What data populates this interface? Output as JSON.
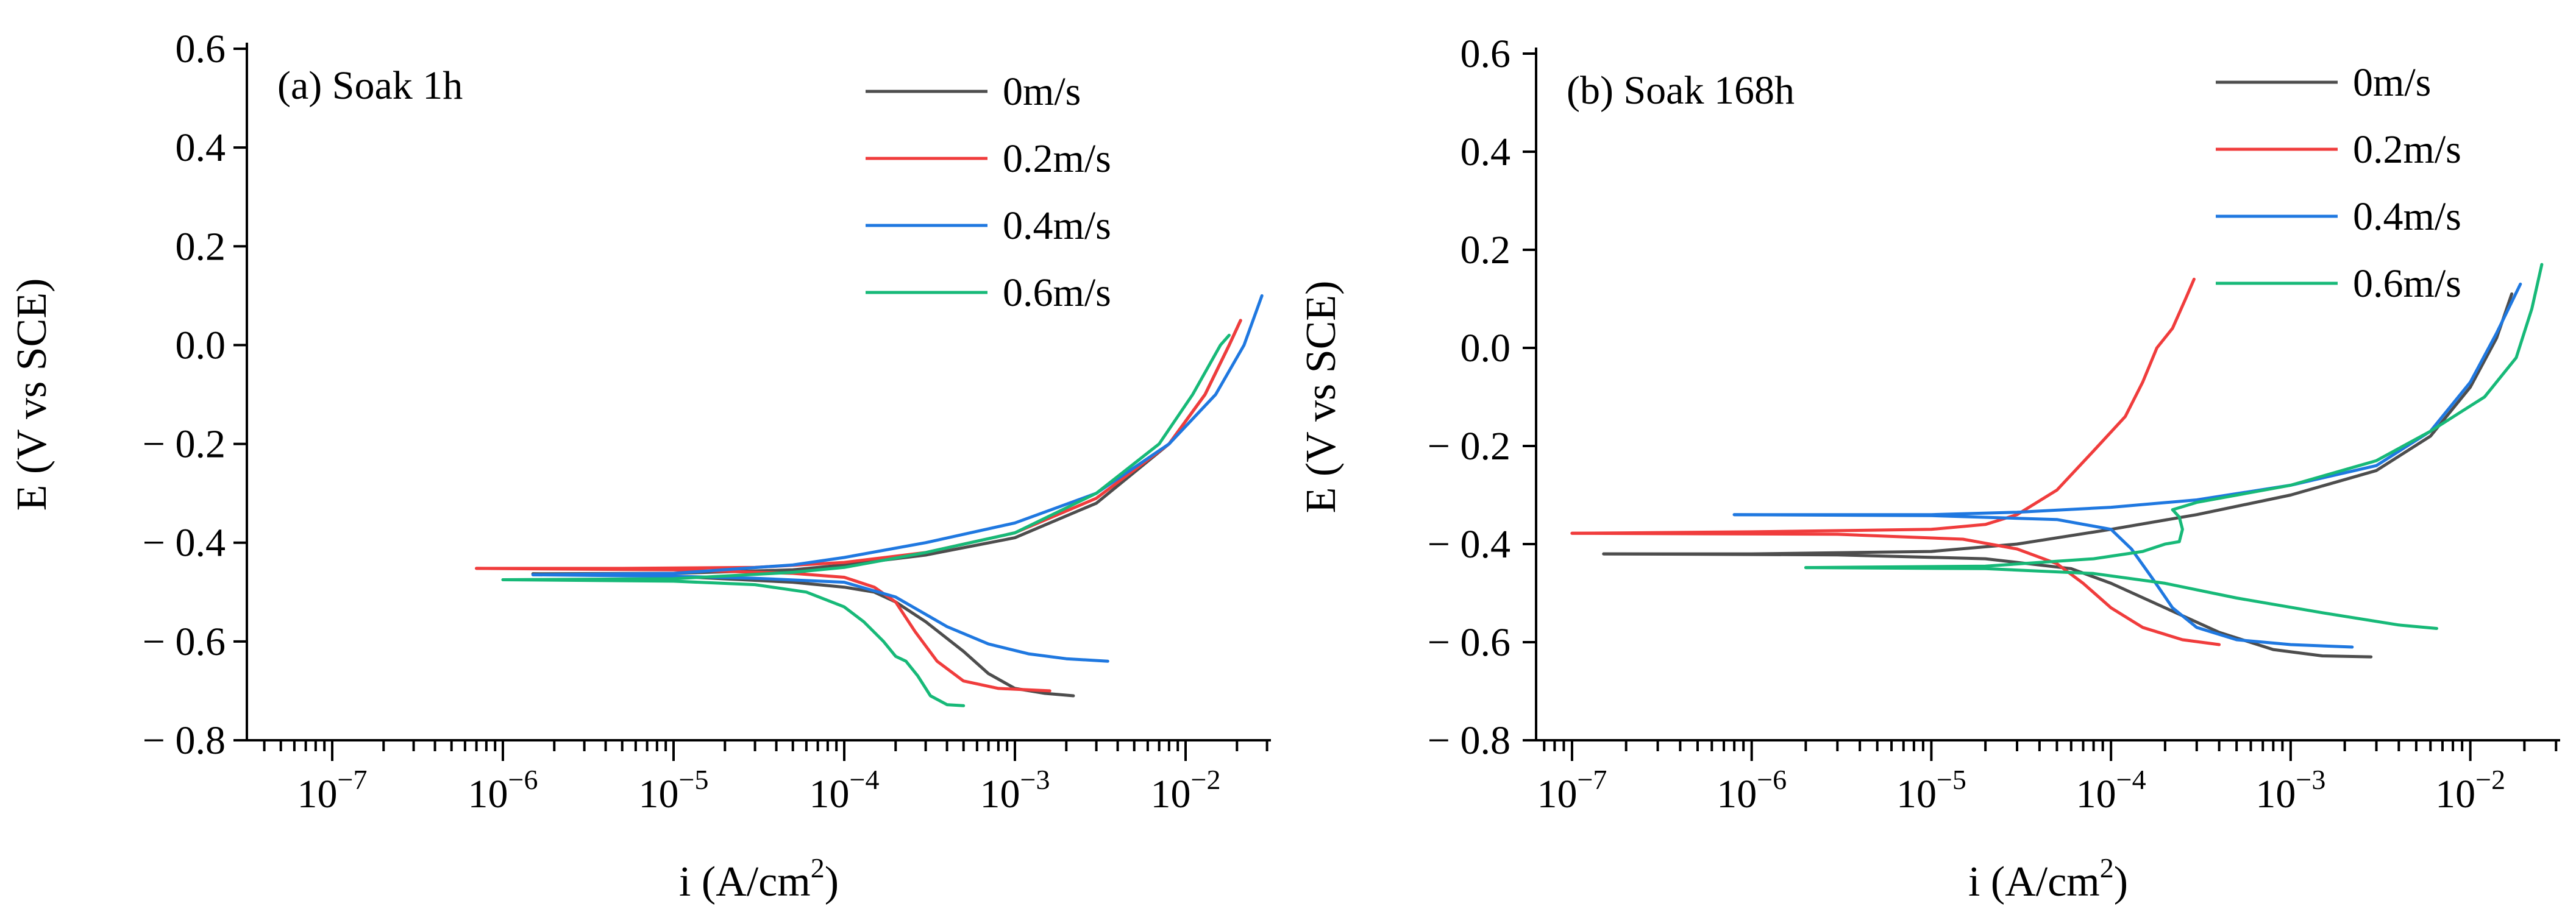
{
  "chart_data": [
    {
      "type": "line",
      "title": "(a) Soak 1h",
      "xlabel": "i (A/cm2)",
      "xlabel_main": "i (A/cm",
      "xlabel_sup": "2",
      "xlabel_close": ")",
      "ylabel": "E (V vs SCE)",
      "xscale": "log",
      "xlim_exp": [
        -7.5,
        -1.5
      ],
      "ylim": [
        -0.8,
        0.6
      ],
      "xticks": [
        {
          "exp": -7,
          "base": "10",
          "sup": "−7"
        },
        {
          "exp": -6,
          "base": "10",
          "sup": "−6"
        },
        {
          "exp": -5,
          "base": "10",
          "sup": "−5"
        },
        {
          "exp": -4,
          "base": "10",
          "sup": "−4"
        },
        {
          "exp": -3,
          "base": "10",
          "sup": "−3"
        },
        {
          "exp": -2,
          "base": "10",
          "sup": "−2"
        }
      ],
      "yticks": [
        {
          "value": 0.6,
          "label": "0.6"
        },
        {
          "value": 0.4,
          "label": "0.4"
        },
        {
          "value": 0.2,
          "label": "0.2"
        },
        {
          "value": 0.0,
          "label": "0.0"
        },
        {
          "value": -0.2,
          "label": "− 0.2"
        },
        {
          "value": -0.4,
          "label": "− 0.4"
        },
        {
          "value": -0.6,
          "label": "− 0.6"
        },
        {
          "value": -0.8,
          "label": "− 0.8"
        }
      ],
      "legend_position": "top-right",
      "series": [
        {
          "name": "0m/s",
          "color": "#4d4d4d",
          "anodic": [
            [
              1.5e-06,
              -0.463
            ],
            [
              1e-05,
              -0.462
            ],
            [
              5e-05,
              -0.455
            ],
            [
              0.0001,
              -0.445
            ],
            [
              0.0003,
              -0.425
            ],
            [
              0.001,
              -0.39
            ],
            [
              0.003,
              -0.32
            ],
            [
              0.008,
              -0.2
            ],
            [
              0.013,
              -0.1
            ],
            [
              0.018,
              0.0
            ],
            [
              0.021,
              0.05
            ]
          ],
          "cathodic": [
            [
              1.5e-06,
              -0.463
            ],
            [
              1e-05,
              -0.468
            ],
            [
              5e-05,
              -0.48
            ],
            [
              0.0001,
              -0.49
            ],
            [
              0.00015,
              -0.5
            ],
            [
              0.0002,
              -0.52
            ],
            [
              0.0003,
              -0.56
            ],
            [
              0.0005,
              -0.62
            ],
            [
              0.0007,
              -0.665
            ],
            [
              0.001,
              -0.695
            ],
            [
              0.0015,
              -0.705
            ],
            [
              0.0022,
              -0.71
            ]
          ]
        },
        {
          "name": "0.2m/s",
          "color": "#f03c3c",
          "anodic": [
            [
              7e-07,
              -0.452
            ],
            [
              5e-06,
              -0.452
            ],
            [
              3e-05,
              -0.45
            ],
            [
              0.0001,
              -0.44
            ],
            [
              0.0003,
              -0.42
            ],
            [
              0.001,
              -0.38
            ],
            [
              0.003,
              -0.31
            ],
            [
              0.008,
              -0.2
            ],
            [
              0.013,
              -0.1
            ],
            [
              0.018,
              0.0
            ],
            [
              0.021,
              0.05
            ]
          ],
          "cathodic": [
            [
              7e-07,
              -0.452
            ],
            [
              1e-05,
              -0.455
            ],
            [
              5e-05,
              -0.462
            ],
            [
              0.0001,
              -0.47
            ],
            [
              0.00015,
              -0.49
            ],
            [
              0.0002,
              -0.52
            ],
            [
              0.00026,
              -0.58
            ],
            [
              0.00035,
              -0.64
            ],
            [
              0.0005,
              -0.68
            ],
            [
              0.0008,
              -0.695
            ],
            [
              0.0012,
              -0.698
            ],
            [
              0.0016,
              -0.7
            ]
          ]
        },
        {
          "name": "0.4m/s",
          "color": "#1f78e0",
          "anodic": [
            [
              1.5e-06,
              -0.465
            ],
            [
              1e-05,
              -0.462
            ],
            [
              5e-05,
              -0.445
            ],
            [
              0.0001,
              -0.43
            ],
            [
              0.0003,
              -0.4
            ],
            [
              0.001,
              -0.36
            ],
            [
              0.003,
              -0.3
            ],
            [
              0.008,
              -0.2
            ],
            [
              0.015,
              -0.1
            ],
            [
              0.022,
              0.0
            ],
            [
              0.028,
              0.1
            ]
          ],
          "cathodic": [
            [
              1.5e-06,
              -0.465
            ],
            [
              1e-05,
              -0.468
            ],
            [
              3e-05,
              -0.472
            ],
            [
              0.0001,
              -0.48
            ],
            [
              0.0002,
              -0.51
            ],
            [
              0.0004,
              -0.57
            ],
            [
              0.0007,
              -0.605
            ],
            [
              0.0012,
              -0.625
            ],
            [
              0.002,
              -0.635
            ],
            [
              0.0035,
              -0.64
            ]
          ]
        },
        {
          "name": "0.6m/s",
          "color": "#17b978",
          "anodic": [
            [
              1e-06,
              -0.475
            ],
            [
              1e-05,
              -0.473
            ],
            [
              5e-05,
              -0.46
            ],
            [
              0.0001,
              -0.45
            ],
            [
              0.0003,
              -0.42
            ],
            [
              0.001,
              -0.38
            ],
            [
              0.003,
              -0.3
            ],
            [
              0.007,
              -0.2
            ],
            [
              0.011,
              -0.1
            ],
            [
              0.016,
              0.0
            ],
            [
              0.018,
              0.02
            ]
          ],
          "cathodic": [
            [
              1e-06,
              -0.475
            ],
            [
              1e-05,
              -0.478
            ],
            [
              3e-05,
              -0.485
            ],
            [
              6e-05,
              -0.5
            ],
            [
              0.0001,
              -0.53
            ],
            [
              0.00013,
              -0.56
            ],
            [
              0.00017,
              -0.6
            ],
            [
              0.0002,
              -0.63
            ],
            [
              0.00023,
              -0.64
            ],
            [
              0.00027,
              -0.67
            ],
            [
              0.00032,
              -0.71
            ],
            [
              0.0004,
              -0.728
            ],
            [
              0.0005,
              -0.73
            ]
          ]
        }
      ]
    },
    {
      "type": "line",
      "title": "(b) Soak 168h",
      "xlabel": "i (A/cm2)",
      "xlabel_main": "i (A/cm",
      "xlabel_sup": "2",
      "xlabel_close": ")",
      "ylabel": "E (V vs SCE)",
      "xscale": "log",
      "xlim_exp": [
        -7.2,
        -1.5
      ],
      "ylim": [
        -0.8,
        0.6
      ],
      "xticks": [
        {
          "exp": -7,
          "base": "10",
          "sup": "−7"
        },
        {
          "exp": -6,
          "base": "10",
          "sup": "−6"
        },
        {
          "exp": -5,
          "base": "10",
          "sup": "−5"
        },
        {
          "exp": -4,
          "base": "10",
          "sup": "−4"
        },
        {
          "exp": -3,
          "base": "10",
          "sup": "−3"
        },
        {
          "exp": -2,
          "base": "10",
          "sup": "−2"
        }
      ],
      "yticks": [
        {
          "value": 0.6,
          "label": "0.6"
        },
        {
          "value": 0.4,
          "label": "0.4"
        },
        {
          "value": 0.2,
          "label": "0.2"
        },
        {
          "value": 0.0,
          "label": "0.0"
        },
        {
          "value": -0.2,
          "label": "− 0.2"
        },
        {
          "value": -0.4,
          "label": "− 0.4"
        },
        {
          "value": -0.6,
          "label": "− 0.6"
        },
        {
          "value": -0.8,
          "label": "− 0.8"
        }
      ],
      "legend_position": "top-right",
      "series": [
        {
          "name": "0m/s",
          "color": "#4d4d4d",
          "anodic": [
            [
              1.5e-07,
              -0.42
            ],
            [
              1e-06,
              -0.42
            ],
            [
              1e-05,
              -0.415
            ],
            [
              3e-05,
              -0.4
            ],
            [
              0.0001,
              -0.37
            ],
            [
              0.0003,
              -0.34
            ],
            [
              0.001,
              -0.3
            ],
            [
              0.003,
              -0.25
            ],
            [
              0.006,
              -0.18
            ],
            [
              0.01,
              -0.08
            ],
            [
              0.014,
              0.02
            ],
            [
              0.017,
              0.11
            ]
          ],
          "cathodic": [
            [
              1.5e-07,
              -0.42
            ],
            [
              3e-06,
              -0.422
            ],
            [
              2e-05,
              -0.43
            ],
            [
              6e-05,
              -0.45
            ],
            [
              0.0001,
              -0.48
            ],
            [
              0.0002,
              -0.53
            ],
            [
              0.0004,
              -0.58
            ],
            [
              0.0008,
              -0.615
            ],
            [
              0.0015,
              -0.628
            ],
            [
              0.0028,
              -0.63
            ]
          ]
        },
        {
          "name": "0.2m/s",
          "color": "#f03c3c",
          "anodic": [
            [
              1e-07,
              -0.378
            ],
            [
              1e-06,
              -0.375
            ],
            [
              1e-05,
              -0.37
            ],
            [
              2e-05,
              -0.36
            ],
            [
              3e-05,
              -0.34
            ],
            [
              5e-05,
              -0.29
            ],
            [
              8e-05,
              -0.21
            ],
            [
              0.00012,
              -0.14
            ],
            [
              0.00015,
              -0.07
            ],
            [
              0.00018,
              0.0
            ],
            [
              0.00022,
              0.04
            ],
            [
              0.00026,
              0.1
            ],
            [
              0.00029,
              0.14
            ]
          ],
          "cathodic": [
            [
              1e-07,
              -0.378
            ],
            [
              3e-06,
              -0.38
            ],
            [
              1.5e-05,
              -0.39
            ],
            [
              3e-05,
              -0.41
            ],
            [
              5e-05,
              -0.44
            ],
            [
              7e-05,
              -0.48
            ],
            [
              0.0001,
              -0.53
            ],
            [
              0.00015,
              -0.57
            ],
            [
              0.00025,
              -0.595
            ],
            [
              0.0004,
              -0.605
            ]
          ]
        },
        {
          "name": "0.4m/s",
          "color": "#1f78e0",
          "anodic": [
            [
              8e-07,
              -0.34
            ],
            [
              1e-05,
              -0.34
            ],
            [
              3e-05,
              -0.335
            ],
            [
              0.0001,
              -0.325
            ],
            [
              0.0003,
              -0.31
            ],
            [
              0.001,
              -0.28
            ],
            [
              0.003,
              -0.24
            ],
            [
              0.006,
              -0.17
            ],
            [
              0.01,
              -0.07
            ],
            [
              0.014,
              0.03
            ],
            [
              0.019,
              0.13
            ]
          ],
          "cathodic": [
            [
              8e-07,
              -0.34
            ],
            [
              1e-05,
              -0.342
            ],
            [
              5e-05,
              -0.35
            ],
            [
              0.0001,
              -0.37
            ],
            [
              0.00013,
              -0.41
            ],
            [
              0.00017,
              -0.47
            ],
            [
              0.00022,
              -0.53
            ],
            [
              0.0003,
              -0.57
            ],
            [
              0.0005,
              -0.595
            ],
            [
              0.001,
              -0.605
            ],
            [
              0.0022,
              -0.61
            ]
          ]
        },
        {
          "name": "0.6m/s",
          "color": "#17b978",
          "anodic": [
            [
              2e-06,
              -0.448
            ],
            [
              2e-05,
              -0.445
            ],
            [
              8e-05,
              -0.43
            ],
            [
              0.00015,
              -0.415
            ],
            [
              0.0002,
              -0.4
            ],
            [
              0.00024,
              -0.395
            ],
            [
              0.00025,
              -0.37
            ],
            [
              0.00024,
              -0.345
            ],
            [
              0.00022,
              -0.33
            ],
            [
              0.0003,
              -0.315
            ],
            [
              0.001,
              -0.28
            ],
            [
              0.003,
              -0.23
            ],
            [
              0.006,
              -0.17
            ],
            [
              0.012,
              -0.1
            ],
            [
              0.018,
              -0.02
            ],
            [
              0.022,
              0.08
            ],
            [
              0.025,
              0.17
            ]
          ],
          "cathodic": [
            [
              2e-06,
              -0.448
            ],
            [
              2e-05,
              -0.45
            ],
            [
              8e-05,
              -0.46
            ],
            [
              0.0002,
              -0.48
            ],
            [
              0.0005,
              -0.51
            ],
            [
              0.0015,
              -0.54
            ],
            [
              0.004,
              -0.565
            ],
            [
              0.0065,
              -0.572
            ]
          ]
        }
      ]
    }
  ]
}
